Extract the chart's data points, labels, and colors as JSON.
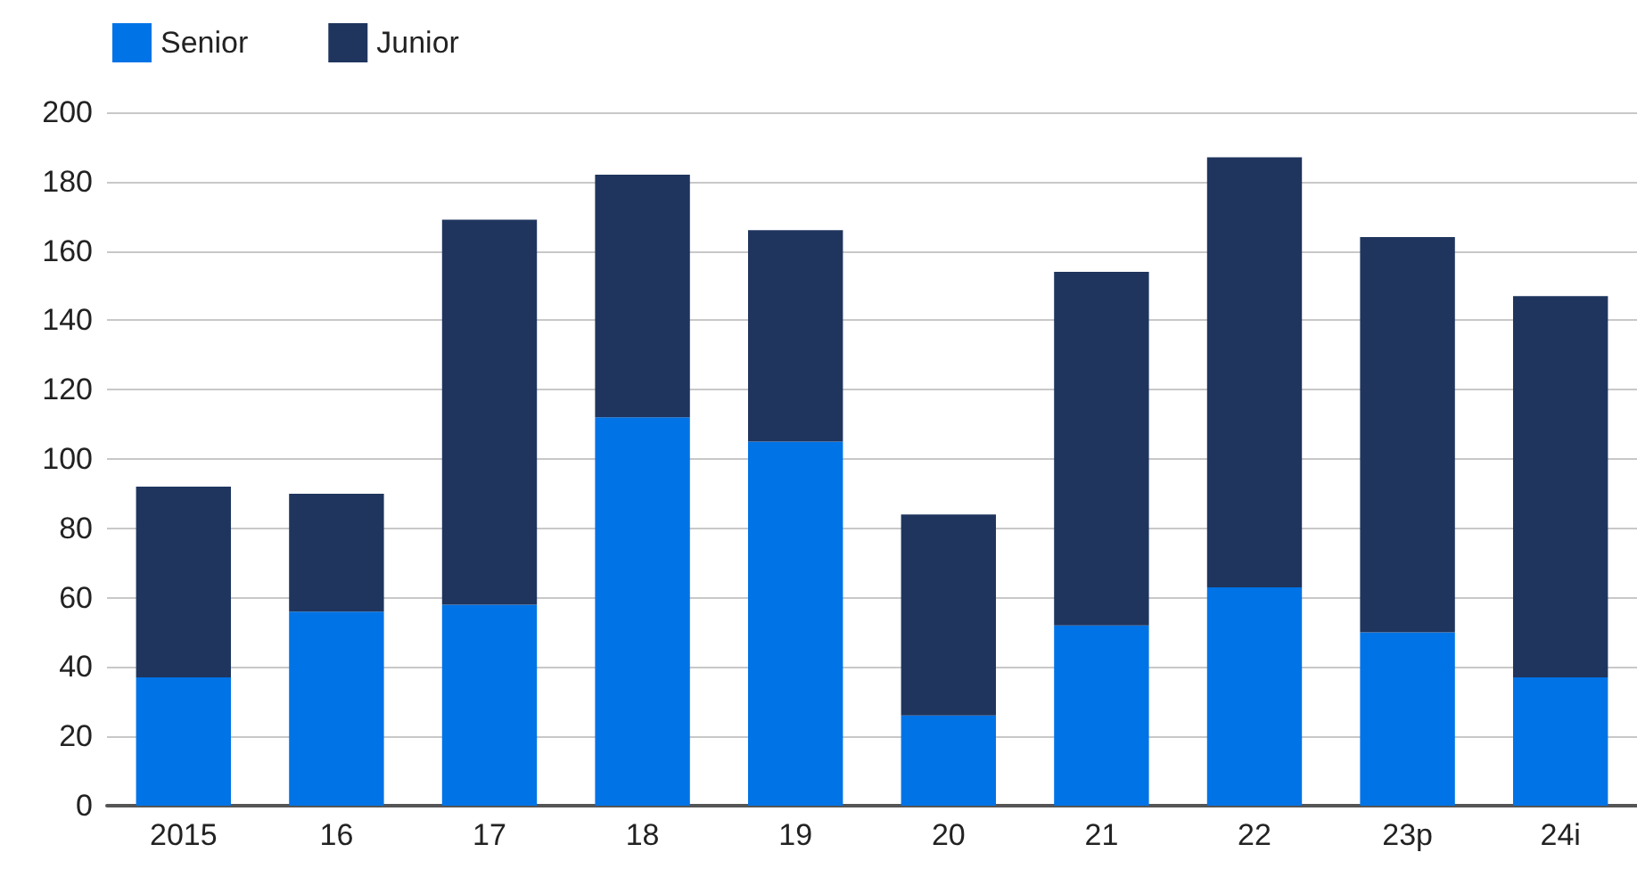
{
  "chart_data": {
    "type": "bar",
    "stacked": true,
    "categories": [
      "2015",
      "16",
      "17",
      "18",
      "19",
      "20",
      "21",
      "22",
      "23p",
      "24i"
    ],
    "series": [
      {
        "name": "Senior",
        "color": "#0073e6",
        "values": [
          37,
          56,
          58,
          112,
          105,
          26,
          52,
          63,
          50,
          37
        ]
      },
      {
        "name": "Junior",
        "color": "#1f355e",
        "values": [
          55,
          34,
          111,
          70,
          61,
          58,
          102,
          124,
          114,
          110
        ]
      }
    ],
    "ylim": [
      0,
      200
    ],
    "yticks": [
      0,
      20,
      40,
      60,
      80,
      100,
      120,
      140,
      160,
      180,
      200
    ],
    "grid": "y",
    "legend": "top left"
  }
}
